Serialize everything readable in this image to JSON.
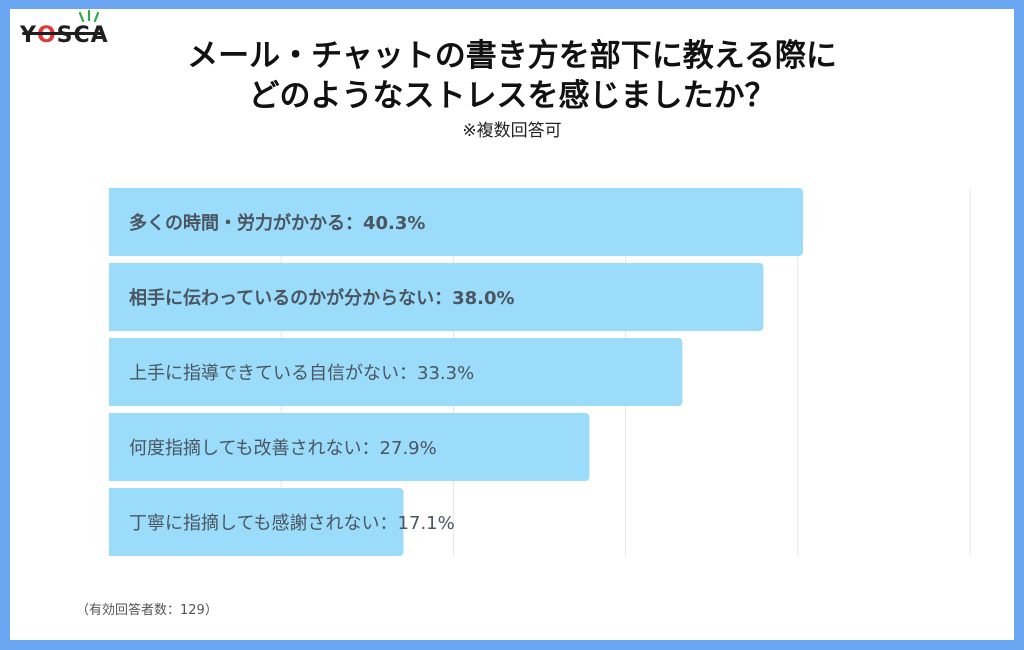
{
  "logo": {
    "text_before": "Y",
    "o_letter": "O",
    "text_after": "SCA"
  },
  "header": {
    "title_line1": "メール・チャットの書き方を部下に教える際に",
    "title_line2": "どのようなストレスを感じましたか？",
    "subtitle": "※複数回答可"
  },
  "colors": {
    "bar": "#9bdcfa",
    "frame": "#6aa6f2",
    "grid": "#e6e6e6",
    "label": "#4a5560"
  },
  "chart_data": {
    "type": "bar",
    "orientation": "horizontal",
    "xlim": [
      0,
      50
    ],
    "grid": true,
    "categories": [
      "多くの時間・労力がかかる：40.3%",
      "相手に伝わっているのかが分からない：38.0%",
      "上手に指導できている自信がない：33.3%",
      "何度指摘しても改善されない：27.9%",
      "丁寧に指摘しても感謝されない：17.1%"
    ],
    "bold": [
      true,
      true,
      false,
      false,
      false
    ],
    "values": [
      40.3,
      38.0,
      33.3,
      27.9,
      17.1
    ]
  },
  "footnote": "（有効回答者数：129）"
}
